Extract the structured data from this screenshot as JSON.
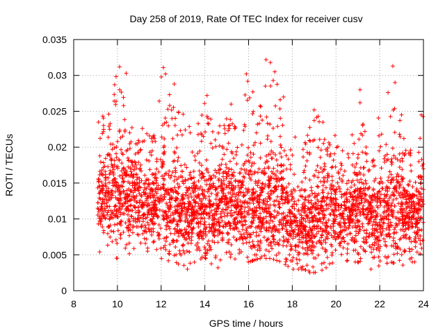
{
  "chart_data": {
    "type": "scatter",
    "title": "Day 258 of 2019, Rate Of TEC Index for receiver cusv",
    "xlabel": "GPS time / hours",
    "ylabel": "ROTI / TECUs",
    "xlim": [
      8,
      24
    ],
    "ylim": [
      0,
      0.035
    ],
    "x_ticks": [
      8,
      10,
      12,
      14,
      16,
      18,
      20,
      22,
      24
    ],
    "x_tick_labels": [
      "8",
      "10",
      "12",
      "14",
      "16",
      "18",
      "20",
      "22",
      "24"
    ],
    "y_ticks": [
      0,
      0.005,
      0.01,
      0.015,
      0.02,
      0.025,
      0.03,
      0.035
    ],
    "y_tick_labels": [
      "0",
      "0.005",
      "0.01",
      "0.015",
      "0.02",
      "0.025",
      "0.03",
      "0.035"
    ],
    "grid": true,
    "marker": "plus",
    "color": "#ff0000",
    "series": [
      {
        "name": "ROTI",
        "x_start": 9.1,
        "x_end": 24.0,
        "envelope": {
          "x": [
            9.1,
            9.5,
            10.0,
            10.5,
            11.0,
            11.5,
            12.0,
            12.5,
            13.0,
            13.5,
            14.0,
            14.5,
            15.0,
            15.5,
            16.0,
            16.5,
            17.0,
            17.5,
            18.0,
            18.5,
            19.0,
            19.5,
            20.0,
            20.5,
            21.0,
            21.5,
            22.0,
            22.5,
            23.0,
            23.5,
            24.0
          ],
          "low": [
            0.005,
            0.005,
            0.0045,
            0.0045,
            0.004,
            0.0045,
            0.0045,
            0.004,
            0.0035,
            0.004,
            0.0035,
            0.0035,
            0.004,
            0.004,
            0.004,
            0.0045,
            0.0045,
            0.004,
            0.003,
            0.003,
            0.0025,
            0.003,
            0.004,
            0.004,
            0.004,
            0.003,
            0.0035,
            0.004,
            0.0035,
            0.004,
            0.005
          ],
          "high": [
            0.024,
            0.025,
            0.031,
            0.024,
            0.024,
            0.022,
            0.031,
            0.027,
            0.025,
            0.022,
            0.027,
            0.023,
            0.026,
            0.022,
            0.03,
            0.026,
            0.032,
            0.027,
            0.022,
            0.021,
            0.025,
            0.024,
            0.022,
            0.019,
            0.028,
            0.02,
            0.025,
            0.031,
            0.023,
            0.019,
            0.025
          ],
          "center": [
            0.012,
            0.013,
            0.014,
            0.013,
            0.013,
            0.012,
            0.013,
            0.012,
            0.011,
            0.011,
            0.011,
            0.011,
            0.012,
            0.011,
            0.012,
            0.011,
            0.013,
            0.012,
            0.009,
            0.009,
            0.01,
            0.011,
            0.011,
            0.01,
            0.012,
            0.01,
            0.011,
            0.012,
            0.011,
            0.01,
            0.012
          ]
        },
        "sample_points": [
          [
            10.1,
            0.0312
          ],
          [
            10.4,
            0.0303
          ],
          [
            10.1,
            0.028
          ],
          [
            12.1,
            0.0311
          ],
          [
            12.2,
            0.0302
          ],
          [
            12.6,
            0.0288
          ],
          [
            14.1,
            0.0272
          ],
          [
            15.2,
            0.026
          ],
          [
            15.9,
            0.0302
          ],
          [
            16.8,
            0.0322
          ],
          [
            17.0,
            0.0318
          ],
          [
            17.2,
            0.0305
          ],
          [
            17.6,
            0.027
          ],
          [
            19.0,
            0.0252
          ],
          [
            21.1,
            0.028
          ],
          [
            21.1,
            0.0262
          ],
          [
            22.6,
            0.0313
          ],
          [
            22.7,
            0.029
          ],
          [
            23.0,
            0.0245
          ],
          [
            23.9,
            0.0245
          ],
          [
            18.8,
            0.0025
          ],
          [
            21.6,
            0.003
          ],
          [
            13.2,
            0.003
          ],
          [
            14.6,
            0.0032
          ],
          [
            23.6,
            0.004
          ]
        ],
        "count": 3600
      }
    ]
  }
}
